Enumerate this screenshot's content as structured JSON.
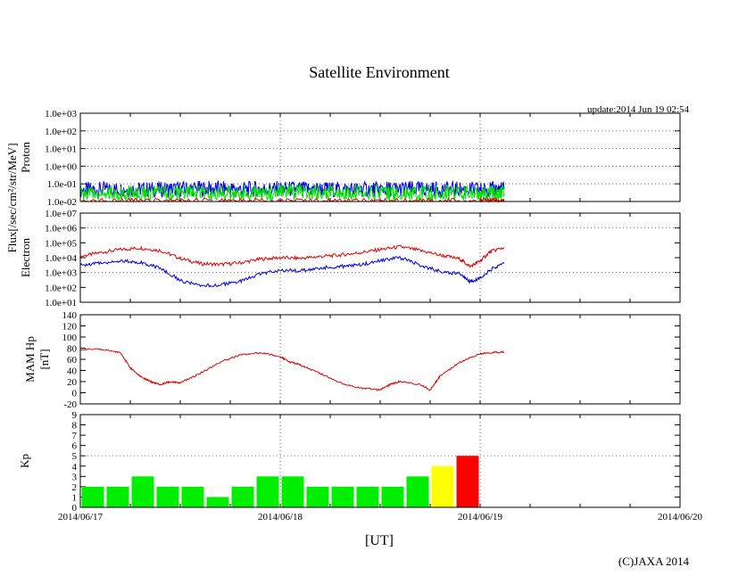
{
  "title": "Satellite Environment",
  "update": "update:2014 Jun 19 02:54",
  "copyright": "(C)JAXA 2014",
  "xlabel": "[UT]",
  "ylabel_flux": "Flux[/sec/cm²/str/MeV]",
  "x_ticks": [
    "2014/06/17",
    "2014/06/18",
    "2014/06/19",
    "2014/06/20"
  ],
  "colors": {
    "red": "#e00000",
    "blue": "#0000e0",
    "green": "#00e000",
    "yellow": "#ffff00",
    "kp_green": "#00ee00",
    "kp_red": "#ff0000"
  },
  "chart_data": [
    {
      "type": "line",
      "name": "proton",
      "ylabel": "Proton",
      "yscale": "log",
      "ylim": [
        0.01,
        1000
      ],
      "y_ticks": [
        "1.0e-02",
        "1.0e-01",
        "1.0e+00",
        "1.0e+01",
        "1.0e+02",
        "1.0e+03"
      ],
      "xlim_days": [
        0,
        3
      ],
      "grid": true,
      "series": [
        {
          "color": "blue",
          "x": [
            0,
            0.2,
            0.4,
            0.6,
            0.8,
            1.0,
            1.2,
            1.4,
            1.6,
            1.8,
            2.0,
            2.12
          ],
          "values": [
            0.045,
            0.05,
            0.048,
            0.055,
            0.05,
            0.052,
            0.05,
            0.048,
            0.053,
            0.05,
            0.047,
            0.05
          ]
        },
        {
          "color": "green",
          "x": [
            0,
            0.2,
            0.4,
            0.6,
            0.8,
            1.0,
            1.2,
            1.4,
            1.6,
            1.8,
            2.0,
            2.12
          ],
          "values": [
            0.03,
            0.032,
            0.03,
            0.031,
            0.03,
            0.033,
            0.032,
            0.031,
            0.03,
            0.031,
            0.03,
            0.031
          ]
        },
        {
          "color": "red",
          "x": [
            0,
            0.5,
            1.0,
            1.5,
            2.0,
            2.12
          ],
          "values": [
            0.011,
            0.011,
            0.011,
            0.011,
            0.011,
            0.011
          ]
        }
      ]
    },
    {
      "type": "line",
      "name": "electron",
      "ylabel": "Electron",
      "yscale": "log",
      "ylim": [
        10,
        10000000
      ],
      "y_ticks": [
        "1.0e+01",
        "1.0e+02",
        "1.0e+03",
        "1.0e+04",
        "1.0e+05",
        "1.0e+06",
        "1.0e+07"
      ],
      "xlim_days": [
        0,
        3
      ],
      "grid": true,
      "series": [
        {
          "color": "red",
          "x": [
            0,
            0.1,
            0.2,
            0.3,
            0.4,
            0.5,
            0.6,
            0.7,
            0.8,
            0.9,
            1.0,
            1.1,
            1.2,
            1.3,
            1.4,
            1.5,
            1.6,
            1.7,
            1.8,
            1.9,
            1.95,
            2.0,
            2.05,
            2.12
          ],
          "values": [
            12000,
            22000,
            35000,
            45000,
            30000,
            9000,
            4000,
            3500,
            4500,
            8000,
            10000,
            9000,
            12000,
            15000,
            22000,
            35000,
            55000,
            30000,
            15000,
            8000,
            2500,
            6000,
            25000,
            50000
          ]
        },
        {
          "color": "blue",
          "x": [
            0,
            0.1,
            0.2,
            0.3,
            0.4,
            0.5,
            0.6,
            0.7,
            0.8,
            0.9,
            1.0,
            1.1,
            1.2,
            1.3,
            1.4,
            1.5,
            1.6,
            1.7,
            1.8,
            1.9,
            1.95,
            2.0,
            2.05,
            2.12
          ],
          "values": [
            3000,
            4500,
            6000,
            5000,
            2000,
            300,
            120,
            150,
            250,
            800,
            1500,
            1300,
            2000,
            2500,
            3500,
            6000,
            10000,
            3000,
            1200,
            800,
            250,
            400,
            1500,
            4000
          ]
        }
      ]
    },
    {
      "type": "line",
      "name": "mam_hp",
      "ylabel": "MAM Hp",
      "ylabel2": "[nT]",
      "ylim": [
        -20,
        140
      ],
      "y_ticks": [
        "-20",
        "0",
        "20",
        "40",
        "60",
        "80",
        "100",
        "120",
        "140"
      ],
      "xlim_days": [
        0,
        3
      ],
      "grid": true,
      "series": [
        {
          "color": "red",
          "x": [
            0,
            0.1,
            0.2,
            0.25,
            0.3,
            0.35,
            0.4,
            0.45,
            0.5,
            0.6,
            0.7,
            0.8,
            0.9,
            1.0,
            1.05,
            1.1,
            1.2,
            1.3,
            1.4,
            1.5,
            1.55,
            1.6,
            1.7,
            1.75,
            1.8,
            1.9,
            2.0,
            2.05,
            2.12
          ],
          "values": [
            78,
            78,
            72,
            45,
            30,
            20,
            15,
            20,
            18,
            35,
            55,
            68,
            72,
            65,
            55,
            50,
            35,
            18,
            8,
            5,
            15,
            20,
            15,
            5,
            30,
            55,
            70,
            72,
            73
          ]
        }
      ]
    },
    {
      "type": "bar",
      "name": "kp",
      "ylabel": "Kp",
      "ylim": [
        0,
        9
      ],
      "y_ticks": [
        "0",
        "1",
        "2",
        "3",
        "4",
        "5",
        "6",
        "7",
        "8",
        "9"
      ],
      "xlim_days": [
        0,
        3
      ],
      "bar_width_days": 0.125,
      "values": [
        2,
        2,
        3,
        2,
        2,
        1,
        2,
        3,
        3,
        2,
        2,
        2,
        2,
        3,
        4,
        5
      ],
      "bar_colors": [
        "kp_green",
        "kp_green",
        "kp_green",
        "kp_green",
        "kp_green",
        "kp_green",
        "kp_green",
        "kp_green",
        "kp_green",
        "kp_green",
        "kp_green",
        "kp_green",
        "kp_green",
        "kp_green",
        "yellow",
        "kp_red"
      ]
    }
  ]
}
